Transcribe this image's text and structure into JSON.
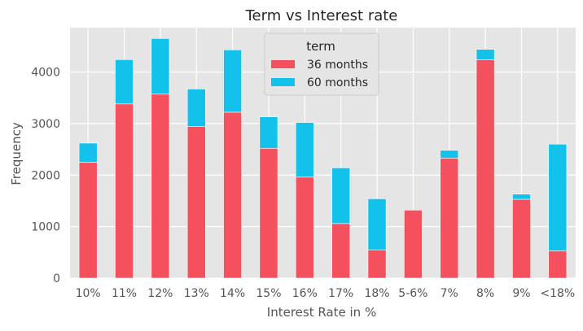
{
  "chart_data": {
    "type": "bar",
    "stacked": true,
    "title": "Term vs Interest rate",
    "xlabel": "Interest Rate in %",
    "ylabel": "Frequency",
    "ylim": [
      0,
      4860
    ],
    "yticks": [
      0,
      1000,
      2000,
      3000,
      4000
    ],
    "grid": true,
    "legend": {
      "title": "term",
      "position": "top-center"
    },
    "categories": [
      "10%",
      "11%",
      "12%",
      "13%",
      "14%",
      "15%",
      "16%",
      "17%",
      "18%",
      "5-6%",
      "7%",
      "8%",
      "9%",
      "<18%"
    ],
    "series": [
      {
        "name": "36 months",
        "color": "#f5505d",
        "values": [
          2250,
          3380,
          3570,
          2940,
          3220,
          2520,
          1960,
          1060,
          550,
          1320,
          2330,
          4240,
          1530,
          530
        ]
      },
      {
        "name": "60 months",
        "color": "#13c2ea",
        "values": [
          370,
          860,
          1080,
          730,
          1210,
          610,
          1060,
          1080,
          990,
          0,
          150,
          200,
          100,
          2070
        ]
      }
    ]
  }
}
